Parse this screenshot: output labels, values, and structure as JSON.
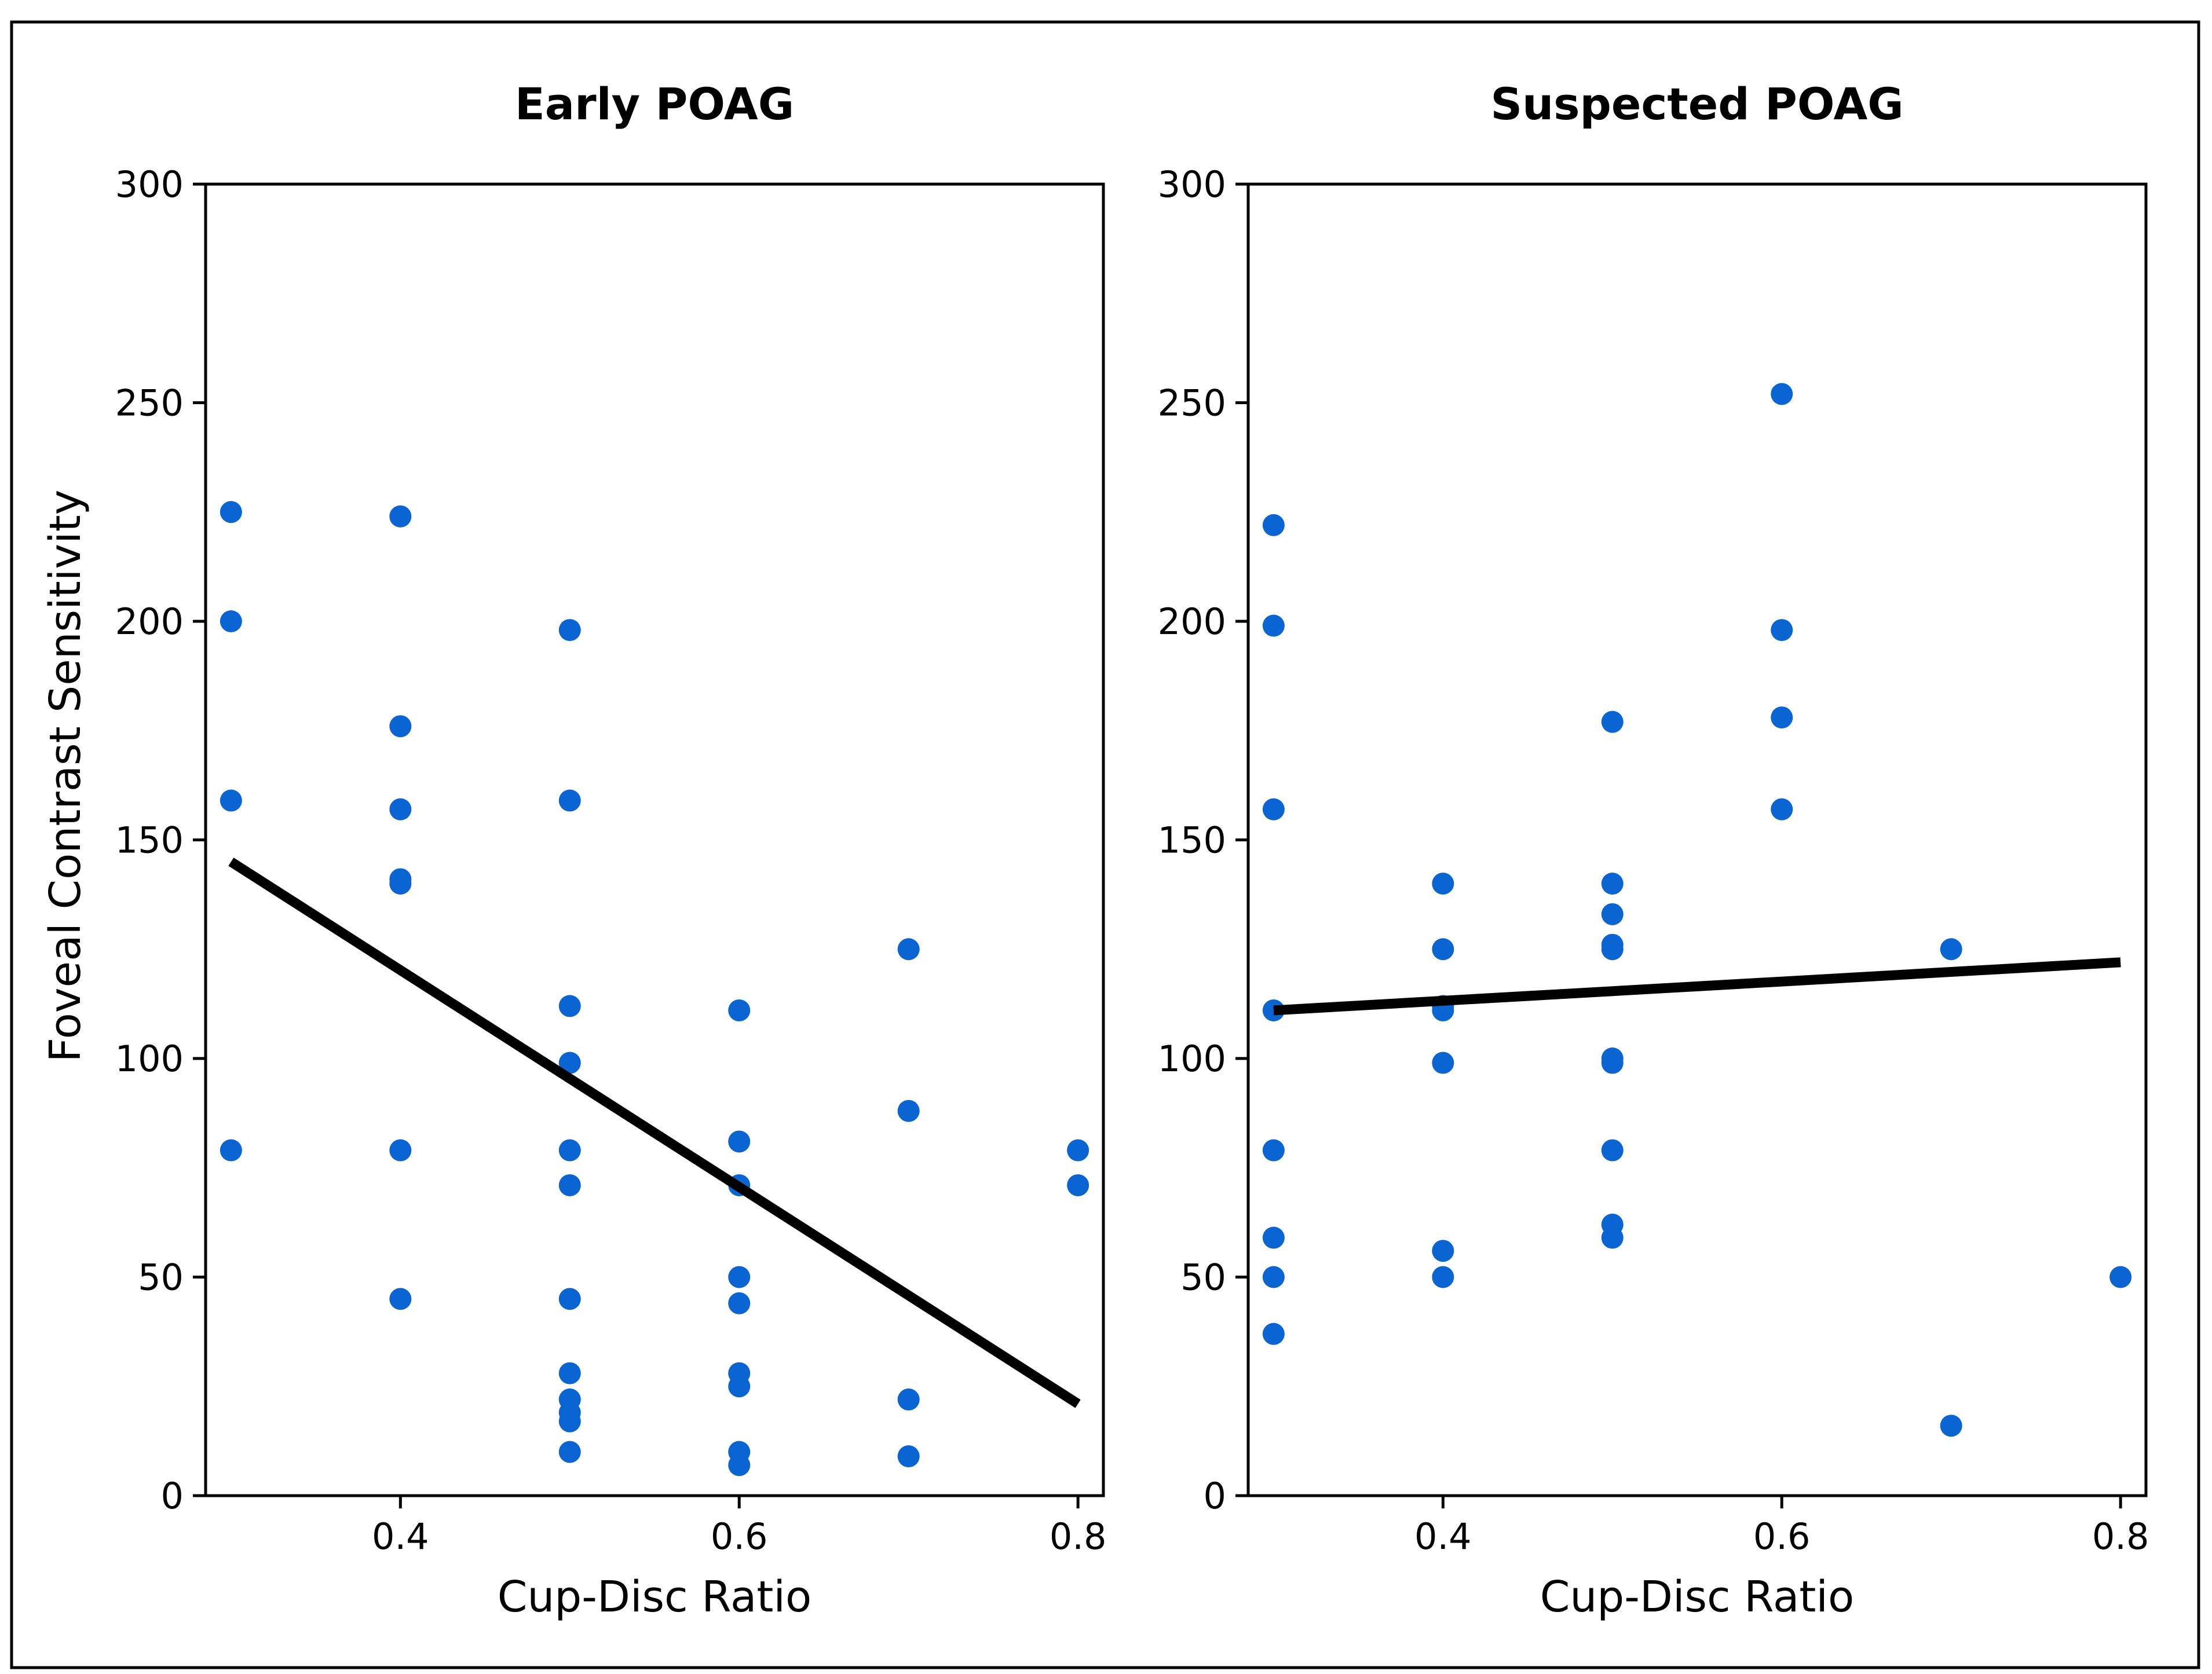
{
  "ylabel": "Foveal Contrast Sensitivity",
  "point_color": "#0a64d2",
  "line_color": "#000000",
  "chart_data": [
    {
      "type": "scatter",
      "title": "Early POAG",
      "xlabel": "Cup-Disc Ratio",
      "ylabel": "Foveal Contrast Sensitivity",
      "xlim": [
        0.285,
        0.815
      ],
      "ylim": [
        0,
        300
      ],
      "xticks": [
        0.4,
        0.6,
        0.8
      ],
      "xtick_labels": [
        "0.4",
        "0.6",
        "0.8"
      ],
      "yticks": [
        0,
        50,
        100,
        150,
        200,
        250,
        300
      ],
      "ytick_labels": [
        "0",
        "50",
        "100",
        "150",
        "200",
        "250",
        "300"
      ],
      "points": [
        [
          0.3,
          225
        ],
        [
          0.3,
          200
        ],
        [
          0.3,
          159
        ],
        [
          0.3,
          79
        ],
        [
          0.4,
          224
        ],
        [
          0.4,
          176
        ],
        [
          0.4,
          157
        ],
        [
          0.4,
          141
        ],
        [
          0.4,
          140
        ],
        [
          0.4,
          79
        ],
        [
          0.4,
          45
        ],
        [
          0.5,
          198
        ],
        [
          0.5,
          159
        ],
        [
          0.5,
          112
        ],
        [
          0.5,
          99
        ],
        [
          0.5,
          79
        ],
        [
          0.5,
          71
        ],
        [
          0.5,
          45
        ],
        [
          0.5,
          28
        ],
        [
          0.5,
          22
        ],
        [
          0.5,
          19
        ],
        [
          0.5,
          17
        ],
        [
          0.5,
          10
        ],
        [
          0.6,
          111
        ],
        [
          0.6,
          81
        ],
        [
          0.6,
          71
        ],
        [
          0.6,
          50
        ],
        [
          0.6,
          44
        ],
        [
          0.6,
          28
        ],
        [
          0.6,
          25
        ],
        [
          0.6,
          10
        ],
        [
          0.6,
          7
        ],
        [
          0.7,
          125
        ],
        [
          0.7,
          88
        ],
        [
          0.7,
          22
        ],
        [
          0.7,
          9
        ],
        [
          0.8,
          79
        ],
        [
          0.8,
          71
        ]
      ],
      "fit_line": {
        "x": [
          0.3,
          0.8
        ],
        "y": [
          145,
          21
        ]
      }
    },
    {
      "type": "scatter",
      "title": "Suspected POAG",
      "xlabel": "Cup-Disc Ratio",
      "ylabel": "",
      "xlim": [
        0.285,
        0.815
      ],
      "ylim": [
        0,
        300
      ],
      "xticks": [
        0.4,
        0.6,
        0.8
      ],
      "xtick_labels": [
        "0.4",
        "0.6",
        "0.8"
      ],
      "yticks": [
        0,
        50,
        100,
        150,
        200,
        250,
        300
      ],
      "ytick_labels": [
        "0",
        "50",
        "100",
        "150",
        "200",
        "250",
        "300"
      ],
      "points": [
        [
          0.3,
          222
        ],
        [
          0.3,
          199
        ],
        [
          0.3,
          157
        ],
        [
          0.3,
          111
        ],
        [
          0.3,
          79
        ],
        [
          0.3,
          59
        ],
        [
          0.3,
          50
        ],
        [
          0.3,
          37
        ],
        [
          0.4,
          140
        ],
        [
          0.4,
          125
        ],
        [
          0.4,
          112
        ],
        [
          0.4,
          111
        ],
        [
          0.4,
          99
        ],
        [
          0.4,
          56
        ],
        [
          0.4,
          50
        ],
        [
          0.5,
          177
        ],
        [
          0.5,
          140
        ],
        [
          0.5,
          133
        ],
        [
          0.5,
          126
        ],
        [
          0.5,
          125
        ],
        [
          0.5,
          100
        ],
        [
          0.5,
          99
        ],
        [
          0.5,
          79
        ],
        [
          0.5,
          62
        ],
        [
          0.5,
          59
        ],
        [
          0.6,
          252
        ],
        [
          0.6,
          198
        ],
        [
          0.6,
          178
        ],
        [
          0.6,
          157
        ],
        [
          0.7,
          125
        ],
        [
          0.7,
          16
        ],
        [
          0.8,
          50
        ]
      ],
      "fit_line": {
        "x": [
          0.3,
          0.8
        ],
        "y": [
          111,
          122
        ]
      }
    }
  ]
}
